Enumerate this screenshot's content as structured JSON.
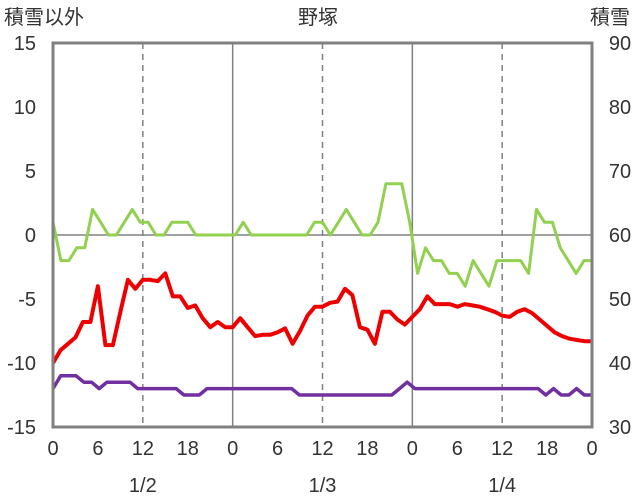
{
  "chart_data": {
    "type": "line",
    "title": "野塚",
    "left_axis_label": "積雪以外",
    "right_axis_label": "積雪",
    "ylim_left": [
      -15,
      15
    ],
    "ylim_right": [
      30,
      90
    ],
    "left_ticks": [
      "15",
      "10",
      "5",
      "0",
      "-5",
      "-10",
      "-15"
    ],
    "right_ticks": [
      "90",
      "80",
      "70",
      "60",
      "50",
      "40",
      "30"
    ],
    "x_range_hours": [
      0,
      72
    ],
    "x_tick_labels": [
      "0",
      "6",
      "12",
      "18",
      "0",
      "6",
      "12",
      "18",
      "0",
      "6",
      "12",
      "18",
      "0"
    ],
    "date_labels": [
      "1/2",
      "1/3",
      "1/4"
    ],
    "grid": {
      "day_lines": "solid",
      "hour12_lines": "dashed"
    },
    "colors": {
      "red": "#ee0000",
      "green": "#92d050",
      "purple": "#7030a0",
      "frame": "#808080"
    },
    "series": [
      {
        "color": "#92d050",
        "axis": "left",
        "values": [
          1,
          -2,
          -2,
          -1,
          -1,
          2,
          1,
          0,
          0,
          1,
          2,
          1,
          1,
          0,
          0,
          1,
          1,
          1,
          0,
          0,
          0,
          0,
          0,
          0,
          1,
          0,
          0,
          0,
          0,
          0,
          0,
          0,
          0,
          1,
          1,
          0,
          1,
          2,
          1,
          0,
          0,
          1,
          4,
          4,
          4,
          1,
          -3,
          -1,
          -2,
          -2,
          -3,
          -3,
          -4,
          -2,
          -3,
          -4,
          -2,
          -2,
          -2,
          -2,
          -3,
          2,
          1,
          1,
          -1,
          -2,
          -3,
          -2,
          -2
        ]
      },
      {
        "color": "#ee0000",
        "axis": "left",
        "values": [
          -10,
          -9,
          -8.5,
          -8,
          -6.8,
          -6.8,
          -4,
          -8.6,
          -8.6,
          -6,
          -3.5,
          -4.2,
          -3.5,
          -3.5,
          -3.6,
          -3,
          -4.8,
          -4.8,
          -5.7,
          -5.5,
          -6.5,
          -7.2,
          -6.8,
          -7.2,
          -7.2,
          -6.5,
          -7.2,
          -7.9,
          -7.8,
          -7.8,
          -7.6,
          -7.3,
          -8.5,
          -7.5,
          -6.3,
          -5.6,
          -5.6,
          -5.3,
          -5.2,
          -4.2,
          -4.7,
          -7.2,
          -7.4,
          -8.5,
          -6,
          -6,
          -6.6,
          -7,
          -6.4,
          -5.8,
          -4.8,
          -5.4,
          -5.4,
          -5.4,
          -5.6,
          -5.4,
          -5.5,
          -5.6,
          -5.8,
          -6.0,
          -6.3,
          -6.4,
          -6.0,
          -5.8,
          -6.1,
          -6.6,
          -7.1,
          -7.6,
          -7.9,
          -8.1,
          -8.2,
          -8.3,
          -8.3
        ]
      },
      {
        "color": "#7030a0",
        "axis": "left",
        "values": [
          -12,
          -11,
          -11,
          -11,
          -11.5,
          -11.5,
          -12,
          -11.5,
          -11.5,
          -11.5,
          -11.5,
          -12,
          -12,
          -12,
          -12,
          -12,
          -12,
          -12.5,
          -12.5,
          -12.5,
          -12,
          -12,
          -12,
          -12,
          -12,
          -12,
          -12,
          -12,
          -12,
          -12,
          -12,
          -12,
          -12.5,
          -12.5,
          -12.5,
          -12.5,
          -12.5,
          -12.5,
          -12.5,
          -12.5,
          -12.5,
          -12.5,
          -12.5,
          -12.5,
          -12.5,
          -12,
          -11.5,
          -12,
          -12,
          -12,
          -12,
          -12,
          -12,
          -12,
          -12,
          -12,
          -12,
          -12,
          -12,
          -12,
          -12,
          -12,
          -12,
          -12,
          -12.5,
          -12,
          -12.5,
          -12.5,
          -12,
          -12.5,
          -12.5
        ]
      }
    ]
  }
}
